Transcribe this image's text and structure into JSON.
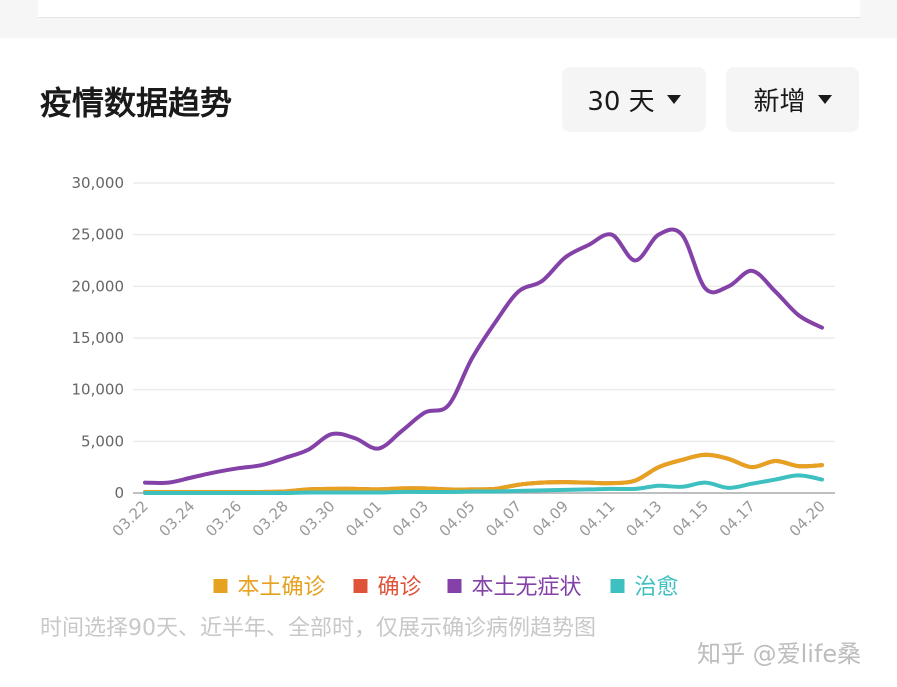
{
  "header": {
    "title": "疫情数据趋势",
    "range_button": "30 天",
    "mode_button": "新增"
  },
  "chart_data": {
    "type": "line",
    "categories": [
      "03.22",
      null,
      "03.24",
      null,
      "03.26",
      null,
      "03.28",
      null,
      "03.30",
      null,
      "04.01",
      null,
      "04.03",
      null,
      "04.05",
      null,
      "04.07",
      null,
      "04.09",
      null,
      "04.11",
      null,
      "04.13",
      null,
      "04.15",
      null,
      "04.17",
      null,
      null,
      "04.20"
    ],
    "series": [
      {
        "name": "本土确诊",
        "color": "#e5a11f",
        "values": [
          100,
          100,
          100,
          100,
          100,
          100,
          150,
          350,
          400,
          400,
          350,
          450,
          450,
          350,
          350,
          400,
          800,
          1000,
          1050,
          1000,
          950,
          1200,
          2500,
          3200,
          3700,
          3300,
          2500,
          3100,
          2600,
          2700
        ]
      },
      {
        "name": "确诊",
        "color": "#e0533b",
        "values": [
          100,
          100,
          100,
          100,
          100,
          100,
          150,
          350,
          400,
          400,
          350,
          450,
          450,
          350,
          350,
          400,
          800,
          1000,
          1050,
          1000,
          950,
          1200,
          2500,
          3200,
          3700,
          3300,
          2500,
          3100,
          2600,
          2700
        ]
      },
      {
        "name": "本土无症状",
        "color": "#8442a8",
        "values": [
          1000,
          1000,
          1500,
          2000,
          2400,
          2700,
          3400,
          4200,
          5700,
          5300,
          4300,
          6000,
          7800,
          8500,
          13000,
          16500,
          19500,
          20500,
          22800,
          24000,
          25000,
          22500,
          25000,
          25000,
          19800,
          20000,
          21500,
          19500,
          17200,
          16000
        ]
      },
      {
        "name": "治愈",
        "color": "#3ec0c1",
        "values": [
          0,
          0,
          0,
          0,
          0,
          0,
          0,
          50,
          50,
          50,
          50,
          100,
          100,
          100,
          150,
          150,
          200,
          250,
          300,
          350,
          400,
          400,
          700,
          600,
          1000,
          500,
          900,
          1300,
          1700,
          1300
        ]
      }
    ],
    "ylim": [
      0,
      30000
    ],
    "yticks": [
      0,
      {
        "value": 5000,
        "label": "5,000"
      },
      {
        "value": 10000,
        "label": "10,000"
      },
      {
        "value": 15000,
        "label": "15,000"
      },
      {
        "value": 20000,
        "label": "20,000"
      },
      {
        "value": 25000,
        "label": "25,000"
      },
      {
        "value": 30000,
        "label": "30,000"
      }
    ],
    "grid": true,
    "legend": "bottom"
  },
  "footnote": "时间选择90天、近半年、全部时，仅展示确诊病例趋势图",
  "watermark": "知乎 @爱life桑"
}
